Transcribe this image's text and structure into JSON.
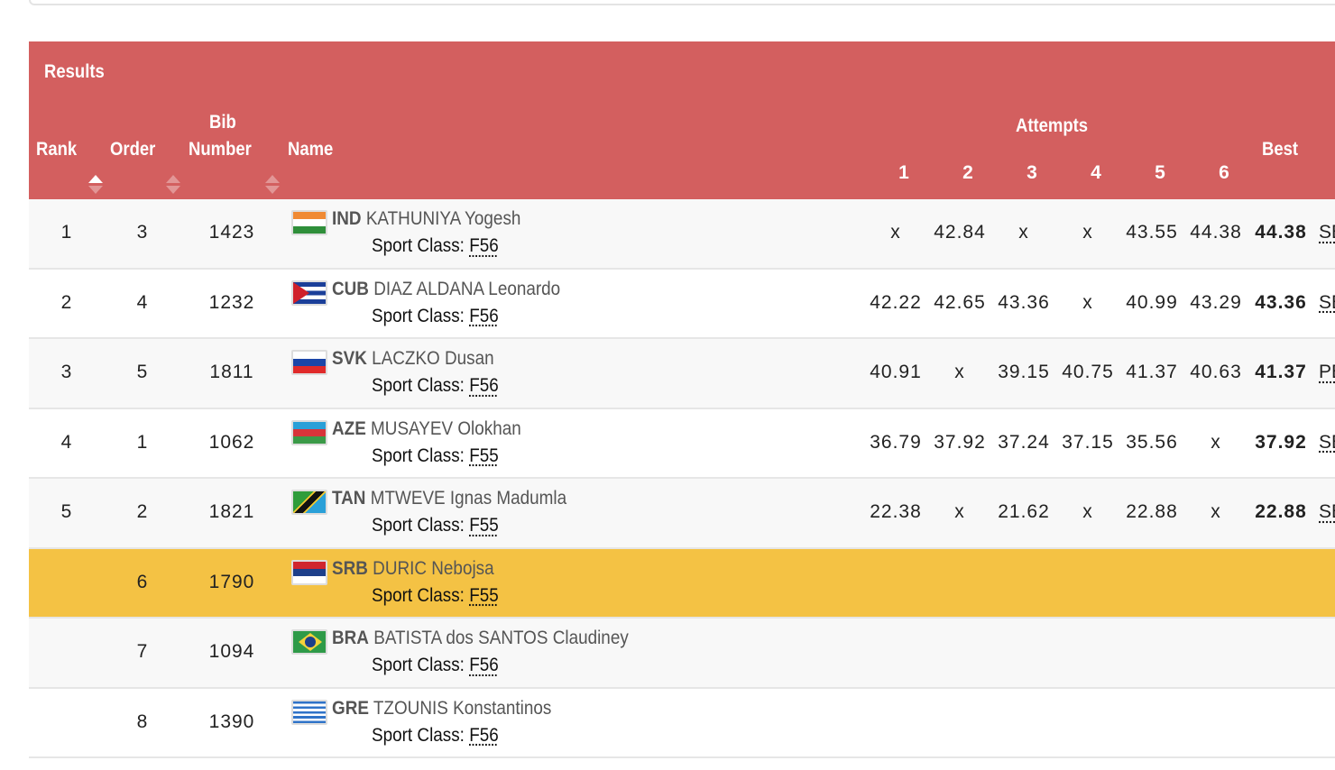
{
  "title": "Results",
  "headers": {
    "rank": "Rank",
    "order": "Order",
    "bib_line1": "Bib",
    "bib_line2": "Number",
    "name": "Name",
    "attempts": "Attempts",
    "attempt_numbers": [
      "1",
      "2",
      "3",
      "4",
      "5",
      "6"
    ],
    "best": "Best"
  },
  "colors": {
    "header": "#d35f5f",
    "highlight": "#f4c244"
  },
  "sport_class_label": "Sport Class:",
  "rows": [
    {
      "rank": "1",
      "order": "3",
      "bib": "1423",
      "country": "IND",
      "name": "KATHUNIYA Yogesh",
      "class": "F56",
      "attempts": [
        "x",
        "42.84",
        "x",
        "x",
        "43.55",
        "44.38"
      ],
      "best": "44.38",
      "record": "SB"
    },
    {
      "rank": "2",
      "order": "4",
      "bib": "1232",
      "country": "CUB",
      "name": "DIAZ ALDANA Leonardo",
      "class": "F56",
      "attempts": [
        "42.22",
        "42.65",
        "43.36",
        "x",
        "40.99",
        "43.29"
      ],
      "best": "43.36",
      "record": "SB"
    },
    {
      "rank": "3",
      "order": "5",
      "bib": "1811",
      "country": "SVK",
      "name": "LACZKO Dusan",
      "class": "F56",
      "attempts": [
        "40.91",
        "x",
        "39.15",
        "40.75",
        "41.37",
        "40.63"
      ],
      "best": "41.37",
      "record": "PB"
    },
    {
      "rank": "4",
      "order": "1",
      "bib": "1062",
      "country": "AZE",
      "name": "MUSAYEV Olokhan",
      "class": "F55",
      "attempts": [
        "36.79",
        "37.92",
        "37.24",
        "37.15",
        "35.56",
        "x"
      ],
      "best": "37.92",
      "record": "SB"
    },
    {
      "rank": "5",
      "order": "2",
      "bib": "1821",
      "country": "TAN",
      "name": "MTWEVE Ignas Madumla",
      "class": "F55",
      "attempts": [
        "22.38",
        "x",
        "21.62",
        "x",
        "22.88",
        "x"
      ],
      "best": "22.88",
      "record": "SB"
    },
    {
      "rank": "",
      "order": "6",
      "bib": "1790",
      "country": "SRB",
      "name": "DURIC Nebojsa",
      "class": "F55",
      "attempts": [
        "",
        "",
        "",
        "",
        "",
        ""
      ],
      "best": "",
      "record": "",
      "highlight": true
    },
    {
      "rank": "",
      "order": "7",
      "bib": "1094",
      "country": "BRA",
      "name": "BATISTA dos SANTOS Claudiney",
      "class": "F56",
      "attempts": [
        "",
        "",
        "",
        "",
        "",
        ""
      ],
      "best": "",
      "record": ""
    },
    {
      "rank": "",
      "order": "8",
      "bib": "1390",
      "country": "GRE",
      "name": "TZOUNIS Konstantinos",
      "class": "F56",
      "attempts": [
        "",
        "",
        "",
        "",
        "",
        ""
      ],
      "best": "",
      "record": ""
    }
  ]
}
